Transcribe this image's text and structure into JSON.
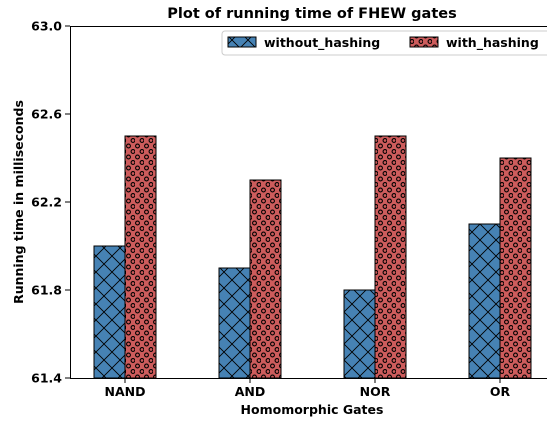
{
  "chart_data": {
    "type": "bar",
    "title": "Plot of running time of FHEW gates",
    "xlabel": "Homomorphic Gates",
    "ylabel": "Running time in milliseconds",
    "categories": [
      "NAND",
      "AND",
      "NOR",
      "OR"
    ],
    "series": [
      {
        "name": "without_hashing",
        "values": [
          62.0,
          61.9,
          61.8,
          62.1
        ],
        "color": "#4682b4",
        "hatch": "crosshatch"
      },
      {
        "name": "with_hashing",
        "values": [
          62.5,
          62.3,
          62.5,
          62.4
        ],
        "color": "#cd5c5c",
        "hatch": "dots"
      }
    ],
    "ylim": [
      61.4,
      63.0
    ],
    "yticks": [
      "61.4",
      "61.8",
      "62.2",
      "62.6",
      "63.0"
    ],
    "grid": false,
    "legend_position": "top-right"
  }
}
